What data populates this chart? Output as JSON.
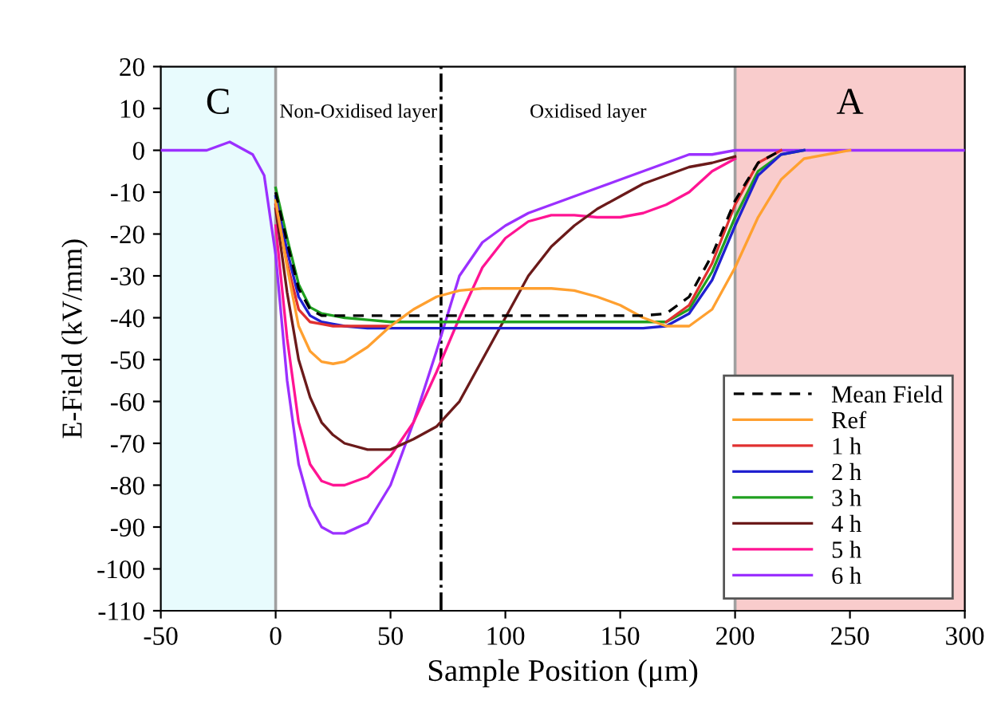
{
  "chart_data": {
    "type": "line",
    "xlabel": "Sample Position (μm)",
    "ylabel": "E-Field (kV/mm)",
    "series": [
      {
        "name": "Mean Field",
        "color": "#000000",
        "line_style": "dashed",
        "x": [
          0,
          5,
          10,
          15,
          20,
          25,
          30,
          40,
          50,
          60,
          70,
          80,
          90,
          100,
          110,
          120,
          130,
          140,
          150,
          160,
          170,
          180,
          190,
          200,
          210,
          220
        ],
        "values": [
          -10,
          -22,
          -33,
          -38,
          -39.5,
          -39.5,
          -39.5,
          -39.5,
          -39.5,
          -39.5,
          -39.5,
          -39.5,
          -39.5,
          -39.5,
          -39.5,
          -39.5,
          -39.5,
          -39.5,
          -39.5,
          -39.5,
          -39,
          -35,
          -25,
          -12,
          -3,
          0
        ]
      },
      {
        "name": "Ref",
        "color": "#ffa030",
        "x": [
          0,
          5,
          10,
          15,
          20,
          25,
          30,
          40,
          50,
          60,
          70,
          80,
          90,
          100,
          110,
          120,
          130,
          140,
          150,
          160,
          170,
          180,
          190,
          200,
          210,
          220,
          230,
          250
        ],
        "values": [
          -12,
          -28,
          -42,
          -48,
          -50.5,
          -51,
          -50.5,
          -47,
          -42,
          -38,
          -35,
          -33.5,
          -33,
          -33,
          -33,
          -33,
          -33.5,
          -35,
          -37,
          -40,
          -42,
          -42,
          -38,
          -28,
          -16,
          -7,
          -2,
          0
        ]
      },
      {
        "name": "1 h",
        "color": "#e03030",
        "x": [
          0,
          5,
          10,
          15,
          20,
          25,
          30,
          40,
          50,
          60,
          160,
          170,
          180,
          190,
          200,
          210,
          220
        ],
        "values": [
          -13,
          -27,
          -38,
          -41,
          -41.5,
          -42,
          -42,
          -42,
          -42,
          null,
          null,
          -41,
          -37,
          -27,
          -13,
          -3,
          0
        ]
      },
      {
        "name": "2 h",
        "color": "#2020d0",
        "x": [
          0,
          5,
          10,
          15,
          20,
          25,
          30,
          40,
          50,
          60,
          70,
          80,
          90,
          100,
          110,
          120,
          130,
          140,
          150,
          160,
          170,
          180,
          190,
          200,
          210,
          220,
          230
        ],
        "values": [
          -11,
          -24,
          -35,
          -39.5,
          -41,
          -41.5,
          -42,
          -42.5,
          -42.5,
          -42.5,
          -42.5,
          -42.5,
          -42.5,
          -42.5,
          -42.5,
          -42.5,
          -42.5,
          -42.5,
          -42.5,
          -42.5,
          -42,
          -39,
          -31,
          -18,
          -6,
          -1,
          0
        ]
      },
      {
        "name": "3 h",
        "color": "#20a020",
        "x": [
          0,
          5,
          10,
          15,
          20,
          25,
          30,
          40,
          50,
          60,
          70,
          80,
          90,
          100,
          110,
          120,
          130,
          140,
          150,
          160,
          170,
          180,
          190,
          200,
          210,
          220,
          230
        ],
        "values": [
          -9,
          -21,
          -32,
          -37.5,
          -39,
          -39.5,
          -40,
          -40.5,
          -41,
          -41,
          -41,
          -41,
          -41,
          -41,
          -41,
          -41,
          -41,
          -41,
          -41,
          -41,
          -41,
          -38,
          -29,
          -16,
          -5,
          -1,
          0
        ]
      },
      {
        "name": "4 h",
        "color": "#6b1a1a",
        "x": [
          0,
          5,
          10,
          15,
          20,
          25,
          30,
          40,
          50,
          60,
          70,
          80,
          90,
          100,
          110,
          120,
          130,
          140,
          150,
          160,
          170,
          180,
          190,
          200
        ],
        "values": [
          -14,
          -34,
          -50,
          -59,
          -65,
          -68,
          -70,
          -71.5,
          -71.5,
          -69,
          -66,
          -60,
          -50,
          -40,
          -30,
          -23,
          -18,
          -14,
          -11,
          -8,
          -6,
          -4,
          -3,
          -1.5
        ]
      },
      {
        "name": "5 h",
        "color": "#ff1493",
        "x": [
          0,
          5,
          10,
          15,
          20,
          25,
          30,
          40,
          50,
          60,
          70,
          80,
          90,
          100,
          110,
          120,
          130,
          140,
          150,
          160,
          170,
          180,
          190,
          200
        ],
        "values": [
          -18,
          -45,
          -65,
          -75,
          -79,
          -80,
          -80,
          -78,
          -73,
          -65,
          -53,
          -40,
          -28,
          -21,
          -17,
          -15.5,
          -15.5,
          -16,
          -16,
          -15,
          -13,
          -10,
          -5,
          -2
        ]
      },
      {
        "name": "6 h",
        "color": "#9b30ff",
        "x": [
          -50,
          -30,
          -20,
          -10,
          -5,
          0,
          5,
          10,
          15,
          20,
          25,
          30,
          40,
          50,
          60,
          70,
          80,
          90,
          100,
          110,
          120,
          130,
          140,
          150,
          160,
          170,
          180,
          190,
          200,
          210,
          300
        ],
        "values": [
          0,
          0,
          2,
          -1,
          -6,
          -25,
          -55,
          -75,
          -85,
          -90,
          -91.5,
          -91.5,
          -89,
          -80,
          -65,
          -48,
          -30,
          -22,
          -18,
          -15,
          -13,
          -11,
          -9,
          -7,
          -5,
          -3,
          -1,
          -1,
          0,
          0,
          0
        ]
      }
    ],
    "xlim": [
      -50,
      300
    ],
    "xticks": [
      -50,
      0,
      50,
      100,
      150,
      200,
      250,
      300
    ],
    "ylim": [
      -110,
      20
    ],
    "yticks": [
      -110,
      -100,
      -90,
      -80,
      -70,
      -60,
      -50,
      -40,
      -30,
      -20,
      -10,
      0,
      10,
      20
    ],
    "bands": [
      {
        "axis": "x",
        "from": -50,
        "to": 0,
        "label": "C",
        "color": "#e8fbfd"
      },
      {
        "axis": "x",
        "from": 200,
        "to": 300,
        "label": "A",
        "color": "#f9cccc"
      }
    ],
    "ref_lines": [
      {
        "axis": "x",
        "value": 0,
        "color": "#a0a0a0",
        "line_style": "solid"
      },
      {
        "axis": "x",
        "value": 72,
        "color": "#000000",
        "line_style": "dashdot"
      },
      {
        "axis": "x",
        "value": 200,
        "color": "#a0a0a0",
        "line_style": "solid"
      }
    ],
    "annotations": [
      "Non-Oxidised layer",
      "Oxidised layer"
    ],
    "legend": "bottom right",
    "grid": false
  }
}
